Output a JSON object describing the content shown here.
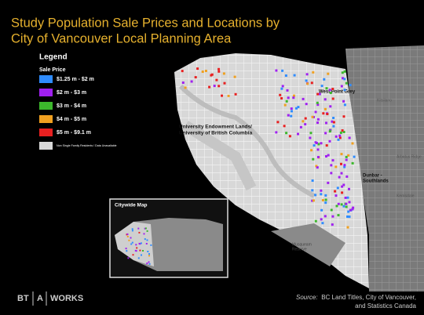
{
  "header": {
    "title_lines": [
      "Study Population Sale Prices and Locations by",
      "City of Vancouver Local Planning Area"
    ]
  },
  "legend": {
    "title": "Legend",
    "subtitle": "Sale Price",
    "items": [
      {
        "label": "$1.25 m - $2 m",
        "color": "#2f8cff"
      },
      {
        "label": "$2 m - $3 m",
        "color": "#a020f0"
      },
      {
        "label": "$3 m - $4 m",
        "color": "#3cb82c"
      },
      {
        "label": "$4 m - $5 m",
        "color": "#f0a020"
      },
      {
        "label": "$5 m - $9.1 m",
        "color": "#e82020"
      },
      {
        "label": "Non Single Family Residents / Data Unavailable",
        "color": "#d9d9d9"
      }
    ]
  },
  "map_labels": {
    "west_point_grey": "West Point Grey",
    "ubc": [
      "University Endowment Lands/",
      "University of British Columbia"
    ],
    "dunbar": [
      "Dunbar -",
      "Southlands"
    ],
    "kitsilano": "Kitsilano",
    "arbutus": "Arbutus Ridge",
    "kerrisdale": "Kerrisdale",
    "musqueam": [
      "Musqueam",
      "Reserve"
    ]
  },
  "inset": {
    "title": "Citywide Map"
  },
  "source": {
    "prefix": "Source:",
    "lines": [
      "BC Land Titles, City of Vancouver,",
      "and Statistics Canada"
    ]
  },
  "logo": {
    "left": "BT",
    "middle": "A",
    "right": "WORKS"
  }
}
